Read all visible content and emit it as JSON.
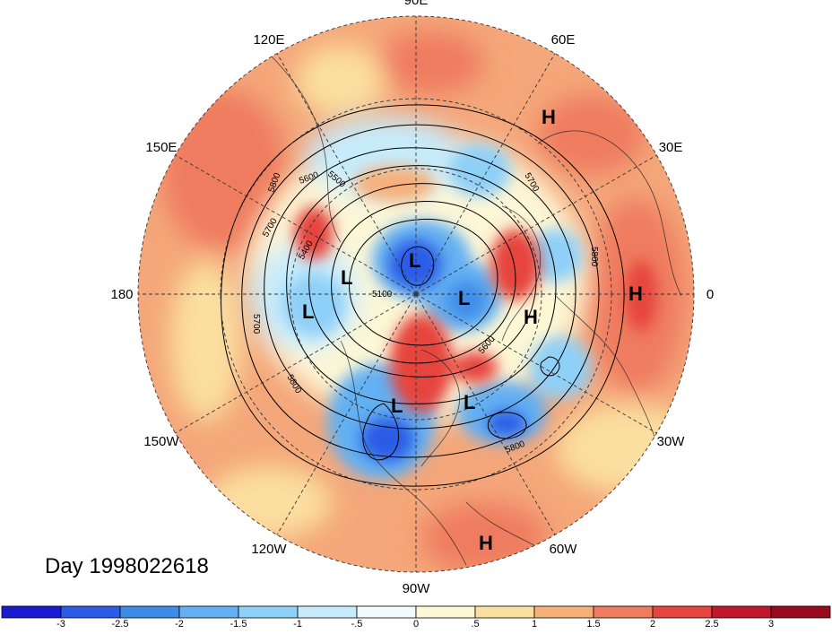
{
  "map": {
    "title": "Day 1998022618",
    "longitude_labels": [
      {
        "text": "90E",
        "angle": 90
      },
      {
        "text": "60E",
        "angle": 60
      },
      {
        "text": "30E",
        "angle": 30
      },
      {
        "text": "0",
        "angle": 0
      },
      {
        "text": "30W",
        "angle": -30
      },
      {
        "text": "60W",
        "angle": -60
      },
      {
        "text": "90W",
        "angle": -90
      },
      {
        "text": "120W",
        "angle": -120
      },
      {
        "text": "150W",
        "angle": -150
      },
      {
        "text": "180",
        "angle": 180
      },
      {
        "text": "150E",
        "angle": 150
      },
      {
        "text": "120E",
        "angle": 120
      }
    ],
    "contour_labels": [
      "5100",
      "5400",
      "5500",
      "5600",
      "5700",
      "5800"
    ],
    "pressure_centers": {
      "high": "H",
      "low": "L"
    },
    "colors": {
      "background_warm": "#f4a77a",
      "warm_strong": "#e8564a",
      "cool": "#5aa8e8",
      "cool_strong": "#2858d8"
    }
  },
  "colorbar": {
    "ticks": [
      "-3",
      "-2.5",
      "-2",
      "-1.5",
      "-1",
      "-.5",
      "0",
      ".5",
      "1",
      "1.5",
      "2",
      "2.5",
      "3"
    ],
    "colors": [
      "#1a1ad0",
      "#2c5ce6",
      "#3f8ce8",
      "#64b0f2",
      "#8fd0f8",
      "#c6ecfc",
      "#f2fcfe",
      "#fdf7d6",
      "#fbdfa0",
      "#f6b07a",
      "#ef7c5e",
      "#e6443e",
      "#c0182a",
      "#990a1e"
    ]
  }
}
